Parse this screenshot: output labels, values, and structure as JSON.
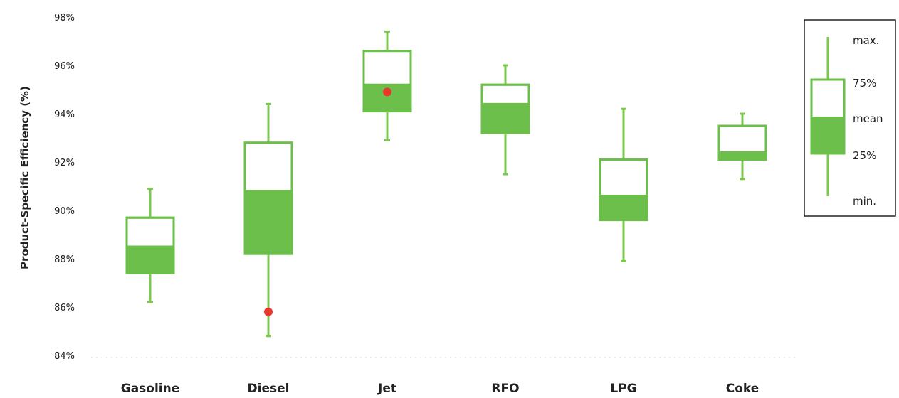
{
  "chart_data": {
    "type": "boxplot",
    "ylabel": "Product-Specific Efficiency (%)",
    "ylim": [
      84,
      98
    ],
    "y_ticks": [
      "84%",
      "86%",
      "88%",
      "90%",
      "92%",
      "94%",
      "96%",
      "98%"
    ],
    "y_tick_values": [
      84,
      86,
      88,
      90,
      92,
      94,
      96,
      98
    ],
    "categories": [
      "Gasoline",
      "Diesel",
      "Jet",
      "RFO",
      "LPG",
      "Coke"
    ],
    "boxes": [
      {
        "category": "Gasoline",
        "min": 86.2,
        "q1": 87.4,
        "mean": 88.5,
        "q3": 89.7,
        "max": 90.9,
        "marker": null
      },
      {
        "category": "Diesel",
        "min": 84.8,
        "q1": 88.2,
        "mean": 90.8,
        "q3": 92.8,
        "max": 94.4,
        "marker": 85.8
      },
      {
        "category": "Jet",
        "min": 92.9,
        "q1": 94.1,
        "mean": 95.2,
        "q3": 96.6,
        "max": 97.4,
        "marker": 94.9
      },
      {
        "category": "RFO",
        "min": 91.5,
        "q1": 93.2,
        "mean": 94.4,
        "q3": 95.2,
        "max": 96.0,
        "marker": null
      },
      {
        "category": "LPG",
        "min": 87.9,
        "q1": 89.6,
        "mean": 90.6,
        "q3": 92.1,
        "max": 94.2,
        "marker": null
      },
      {
        "category": "Coke",
        "min": 91.3,
        "q1": 92.1,
        "mean": 92.4,
        "q3": 93.5,
        "max": 94.0,
        "marker": null
      }
    ],
    "legend": {
      "position": "right",
      "labels": {
        "max": "max.",
        "q3": "75%",
        "mean": "mean",
        "q1": "25%",
        "min": "min."
      }
    },
    "colors": {
      "box_fill": "#6dbf4b",
      "box_stroke": "#6dbf4b",
      "whisker": "#7cc84f",
      "marker": "#e8382b",
      "baseline": "#d8d8d8",
      "legend_border": "#222222"
    }
  }
}
